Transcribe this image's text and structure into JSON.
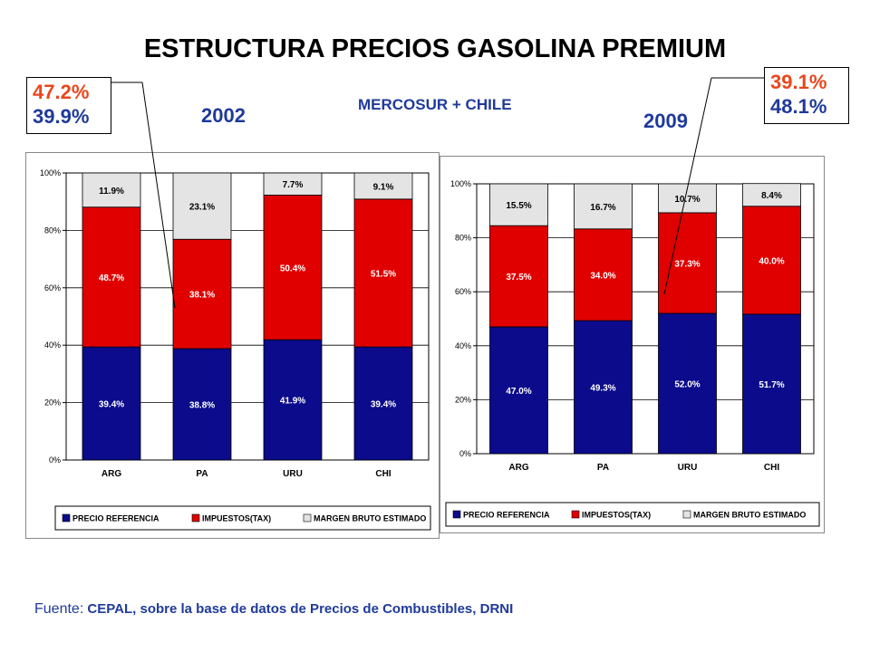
{
  "title": "ESTRUCTURA PRECIOS GASOLINA PREMIUM",
  "subtitle": "MERCOSUR + CHILE",
  "year_left": "2002",
  "year_right": "2009",
  "callout_left": {
    "line1": "47.2%",
    "line2": "39.9%"
  },
  "callout_right": {
    "line1": "39.1%",
    "line2": "48.1%"
  },
  "footer": {
    "label": "Fuente:",
    "text": " CEPAL, sobre la base de datos de Precios de Combustibles, DRNI"
  },
  "colors": {
    "precio": "#0b0b8c",
    "impuestos": "#e00000",
    "margen": "#e4e4e4",
    "label_light": "#ffffff",
    "label_dark": "#000000"
  },
  "chart_data": [
    {
      "type": "bar",
      "stacked": true,
      "year": "2002",
      "categories": [
        "ARG",
        "PA",
        "URU",
        "CHI"
      ],
      "series": [
        {
          "name": "PRECIO REFERENCIA",
          "values": [
            39.4,
            38.8,
            41.9,
            39.4
          ],
          "labels": [
            "39.4%",
            "38.8%",
            "41.9%",
            "39.4%"
          ]
        },
        {
          "name": "IMPUESTOS(TAX)",
          "values": [
            48.7,
            38.1,
            50.4,
            51.5
          ],
          "labels": [
            "48.7%",
            "38.1%",
            "50.4%",
            "51.5%"
          ]
        },
        {
          "name": "MARGEN BRUTO ESTIMADO",
          "values": [
            11.9,
            23.1,
            7.7,
            9.1
          ],
          "labels": [
            "11.9%",
            "23.1%",
            "7.7%",
            "9.1%"
          ]
        }
      ],
      "yticks": [
        "0%",
        "20%",
        "40%",
        "60%",
        "80%",
        "100%"
      ],
      "ylim": [
        0,
        100
      ],
      "grid": true,
      "legend": "bottom"
    },
    {
      "type": "bar",
      "stacked": true,
      "year": "2009",
      "categories": [
        "ARG",
        "PA",
        "URU",
        "CHI"
      ],
      "series": [
        {
          "name": "PRECIO REFERENCIA",
          "values": [
            47.0,
            49.3,
            52.0,
            51.7
          ],
          "labels": [
            "47.0%",
            "49.3%",
            "52.0%",
            "51.7%"
          ]
        },
        {
          "name": "IMPUESTOS(TAX)",
          "values": [
            37.5,
            34.0,
            37.3,
            40.0
          ],
          "labels": [
            "37.5%",
            "34.0%",
            "37.3%",
            "40.0%"
          ]
        },
        {
          "name": "MARGEN BRUTO ESTIMADO",
          "values": [
            15.5,
            16.7,
            10.7,
            8.4
          ],
          "labels": [
            "15.5%",
            "16.7%",
            "10.7%",
            "8.4%"
          ]
        }
      ],
      "yticks": [
        "0%",
        "20%",
        "40%",
        "60%",
        "80%",
        "100%"
      ],
      "ylim": [
        0,
        100
      ],
      "grid": true,
      "legend": "bottom"
    }
  ]
}
